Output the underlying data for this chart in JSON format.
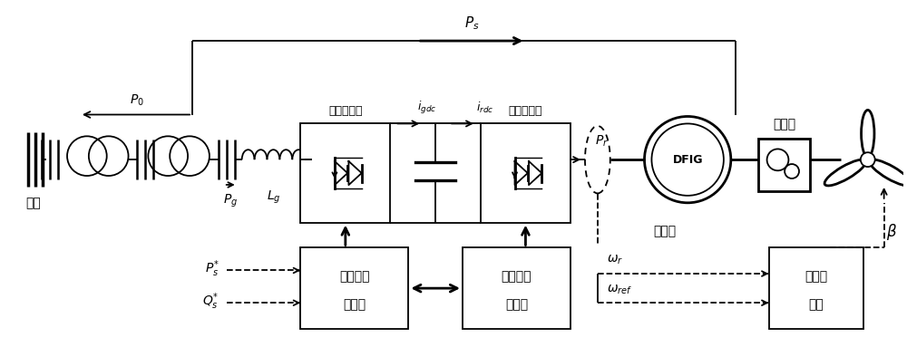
{
  "bg_color": "#ffffff",
  "line_color": "#000000",
  "fig_width": 10.0,
  "fig_height": 3.94,
  "dpi": 100,
  "labels": {
    "grid": "电网",
    "Ps_top": "$P_{s}$",
    "P0": "$P_{0}$",
    "Pg": "$P_{g}$",
    "Lg": "$L_{g}$",
    "grid_converter": "网侧变流器",
    "igdc": "$i_{gdc}$",
    "irdc": "$i_{rdc}$",
    "machine_converter": "机侧变流器",
    "Pr": "$P_{r}$",
    "DFIG": "DFIG",
    "drive_shaft": "传动轴",
    "generator": "发电机",
    "beta": "$\\beta$",
    "grid_ctrl_line1": "网侧变流",
    "grid_ctrl_line2": "器控制",
    "machine_ctrl_line1": "机侧变流",
    "machine_ctrl_line2": "器控制",
    "Ps_star": "$P_{s}^{*}$",
    "Qs_star": "$Q_{s}^{*}$",
    "omega_r": "$\\omega_{r}$",
    "omega_ref": "$\\omega_{ref}$",
    "pitch_ctrl_line1": "桨距角",
    "pitch_ctrl_line2": "控制"
  }
}
